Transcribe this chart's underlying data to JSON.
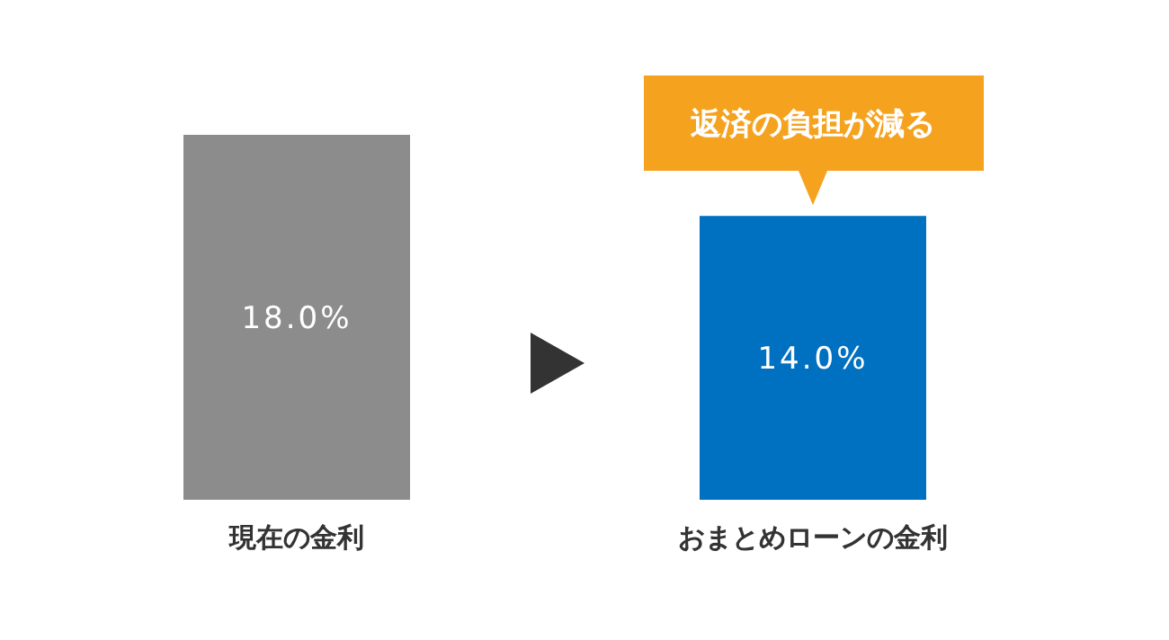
{
  "chart_data": {
    "type": "bar",
    "categories": [
      "現在の金利",
      "おまとめローンの金利"
    ],
    "values": [
      18.0,
      14.0
    ],
    "colors": [
      "#8c8c8c",
      "#0070c0"
    ],
    "value_labels": [
      "18.0%",
      "14.0%"
    ],
    "annotations": [
      {
        "text": "返済の負担が減る",
        "x": "おまとめローンの金利",
        "y": 14.0
      }
    ]
  }
}
